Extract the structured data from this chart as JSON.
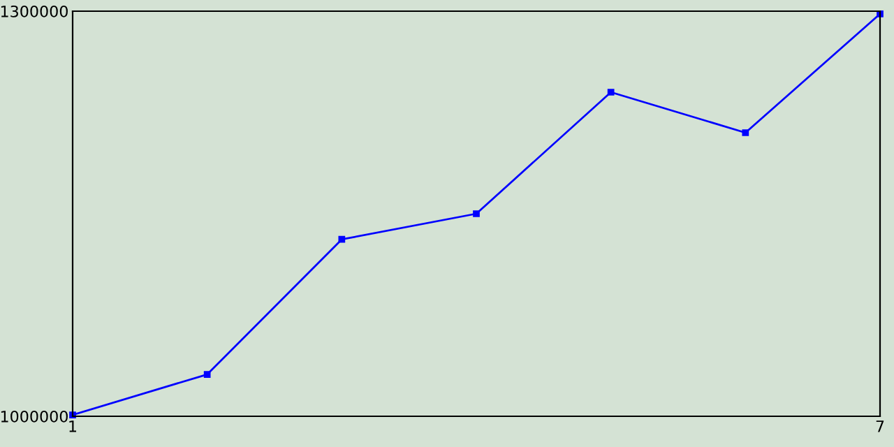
{
  "chart_data": {
    "type": "line",
    "x": [
      1,
      2,
      3,
      4,
      5,
      6,
      7
    ],
    "series": [
      {
        "color": "#0000ff",
        "values": [
          1001000,
          1031000,
          1131000,
          1150000,
          1240000,
          1210000,
          1298000
        ]
      }
    ],
    "xlim": [
      1,
      7
    ],
    "xticks": [
      1,
      7
    ],
    "ylim": [
      1000000,
      1300000
    ],
    "yticks": [
      1000000,
      1300000
    ],
    "marker": "square",
    "line_style": "solid",
    "grid": false,
    "legend": false
  }
}
